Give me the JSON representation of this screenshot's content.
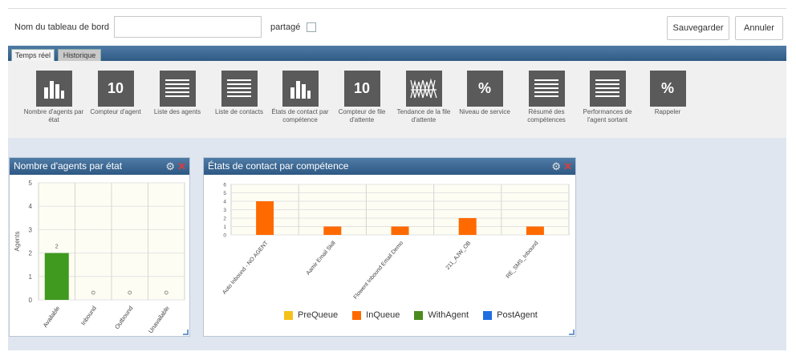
{
  "header": {
    "name_label": "Nom du tableau de bord",
    "name_value": "",
    "shared_label": "partagé",
    "save_label": "Sauvegarder",
    "cancel_label": "Annuler"
  },
  "tabs": [
    {
      "label": "Temps réel",
      "active": true
    },
    {
      "label": "Historique",
      "active": false
    }
  ],
  "widgets": [
    {
      "label": "Nombre d'agents par état",
      "icon": "bar-chart-icon"
    },
    {
      "label": "Compteur d'agent",
      "icon": "counter-icon",
      "glyph": "10"
    },
    {
      "label": "Liste des agents",
      "icon": "list-icon"
    },
    {
      "label": "Liste de contacts",
      "icon": "list-icon"
    },
    {
      "label": "États de contact par compétence",
      "icon": "bar-chart-icon"
    },
    {
      "label": "Compteur de file d'attente",
      "icon": "counter-icon",
      "glyph": "10"
    },
    {
      "label": "Tendance de la file d'attente",
      "icon": "trend-icon"
    },
    {
      "label": "Niveau de service",
      "icon": "percent-icon",
      "glyph": "%"
    },
    {
      "label": "Résumé des compétences",
      "icon": "list-icon"
    },
    {
      "label": "Performances de l'agent sortant",
      "icon": "list-icon"
    },
    {
      "label": "Rappeler",
      "icon": "percent-icon",
      "glyph": "%"
    }
  ],
  "panels": {
    "agents": {
      "title": "Nombre d'agents par état"
    },
    "contacts": {
      "title": "États de contact par compétence"
    }
  },
  "chart_data": [
    {
      "type": "bar",
      "title": "Nombre d'agents par état",
      "categories": [
        "Available",
        "Inbound",
        "Outbound",
        "Unavailable"
      ],
      "values": [
        2,
        0,
        0,
        0
      ],
      "data_labels": [
        "2",
        "0",
        "0",
        "0"
      ],
      "ylabel": "Agents",
      "ylim": [
        0,
        5
      ],
      "yticks": [
        "0",
        "1",
        "2",
        "3",
        "4",
        "5"
      ],
      "color": "#3f9a1f",
      "grid": true
    },
    {
      "type": "bar",
      "title": "États de contact par compétence",
      "categories": [
        "Auto Inbound - NO AGENT",
        "Aamir Email Skill",
        "Flowent Inbound Email Demo",
        "211_AJW_OB",
        "RE_SMS_Inbound"
      ],
      "series": [
        {
          "name": "PreQueue",
          "color": "#f5c21b",
          "values": [
            0,
            0,
            0,
            0,
            0
          ]
        },
        {
          "name": "InQueue",
          "color": "#ff6a00",
          "values": [
            4,
            1,
            1,
            2,
            1
          ]
        },
        {
          "name": "WithAgent",
          "color": "#4b8a1e",
          "values": [
            0,
            0,
            0,
            0,
            0
          ]
        },
        {
          "name": "PostAgent",
          "color": "#1f6fe0",
          "values": [
            0,
            0,
            0,
            0,
            0
          ]
        }
      ],
      "ylim": [
        0,
        6
      ],
      "yticks": [
        "0",
        "1",
        "2",
        "3",
        "4",
        "5",
        "6"
      ],
      "legend": "bottom",
      "grid": true
    }
  ]
}
